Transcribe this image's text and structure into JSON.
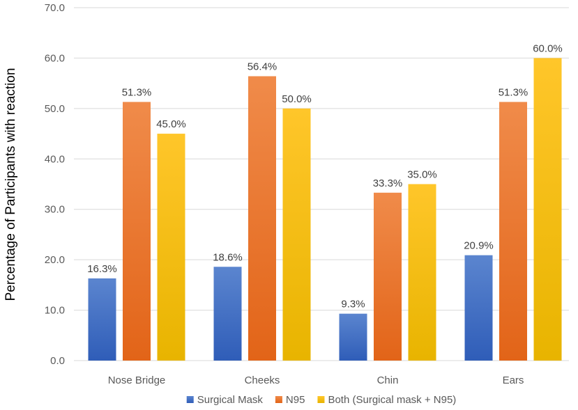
{
  "chart_data": {
    "type": "bar",
    "title": "",
    "xlabel": "",
    "ylabel": "Percentage of Participants with reaction",
    "ylim": [
      0,
      70
    ],
    "yticks": [
      "0.0",
      "10.0",
      "20.0",
      "30.0",
      "40.0",
      "50.0",
      "60.0",
      "70.0"
    ],
    "grid": true,
    "legend_position": "bottom",
    "categories": [
      "Nose Bridge",
      "Cheeks",
      "Chin",
      "Ears"
    ],
    "series": [
      {
        "name": "Surgical Mask",
        "color": "#4472C4",
        "values": [
          16.3,
          18.6,
          9.3,
          20.9
        ],
        "labels": [
          "16.3%",
          "18.6%",
          "9.3%",
          "20.9%"
        ]
      },
      {
        "name": "N95",
        "color": "#ED7D31",
        "values": [
          51.3,
          56.4,
          33.3,
          51.3
        ],
        "labels": [
          "51.3%",
          "56.4%",
          "33.3%",
          "51.3%"
        ]
      },
      {
        "name": "Both (Surgical mask + N95)",
        "color": "#FFC000",
        "values": [
          45.0,
          50.0,
          35.0,
          60.0
        ],
        "labels": [
          "45.0%",
          "50.0%",
          "35.0%",
          "60.0%"
        ]
      }
    ]
  }
}
